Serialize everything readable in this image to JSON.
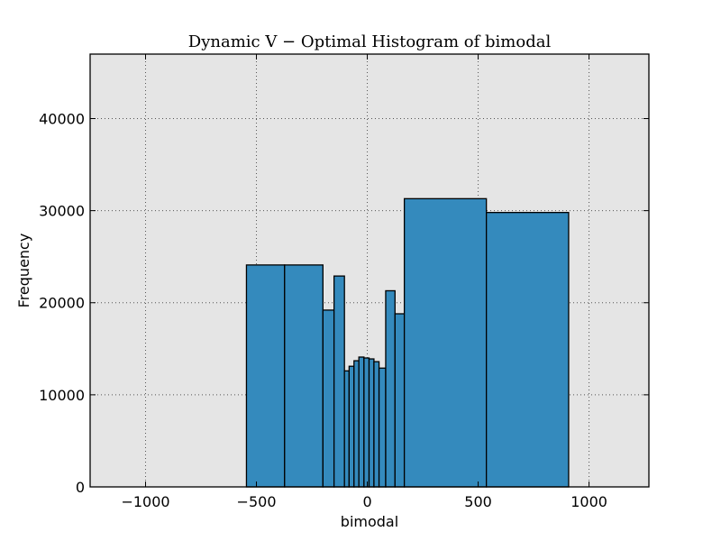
{
  "chart_data": {
    "type": "bar",
    "title": "Dynamic V − Optimal Histogram of bimodal",
    "xlabel": "bimodal",
    "ylabel": "Frequency",
    "xlim": [
      -1250,
      1270
    ],
    "ylim": [
      0,
      47000
    ],
    "grid": true,
    "x_ticks": [
      -1000,
      -500,
      0,
      500,
      1000
    ],
    "y_ticks": [
      0,
      10000,
      20000,
      30000,
      40000
    ],
    "colors": {
      "bar": "#348abd",
      "background": "#e5e5e5"
    },
    "bins": [
      {
        "x0": -890,
        "x1": -545,
        "count": 0
      },
      {
        "x0": -545,
        "x1": -373,
        "count": 24100
      },
      {
        "x0": -373,
        "x1": -200,
        "count": 24100
      },
      {
        "x0": -200,
        "x1": -150,
        "count": 19200
      },
      {
        "x0": -150,
        "x1": -103,
        "count": 22900
      },
      {
        "x0": -103,
        "x1": -82,
        "count": 12600
      },
      {
        "x0": -82,
        "x1": -60,
        "count": 13100
      },
      {
        "x0": -60,
        "x1": -38,
        "count": 13700
      },
      {
        "x0": -38,
        "x1": -15,
        "count": 14100
      },
      {
        "x0": -15,
        "x1": 8,
        "count": 14000
      },
      {
        "x0": 8,
        "x1": 30,
        "count": 13900
      },
      {
        "x0": 30,
        "x1": 53,
        "count": 13600
      },
      {
        "x0": 53,
        "x1": 83,
        "count": 12900
      },
      {
        "x0": 83,
        "x1": 125,
        "count": 21300
      },
      {
        "x0": 125,
        "x1": 167,
        "count": 18800
      },
      {
        "x0": 167,
        "x1": 537,
        "count": 31300
      },
      {
        "x0": 537,
        "x1": 908,
        "count": 29800
      }
    ]
  }
}
